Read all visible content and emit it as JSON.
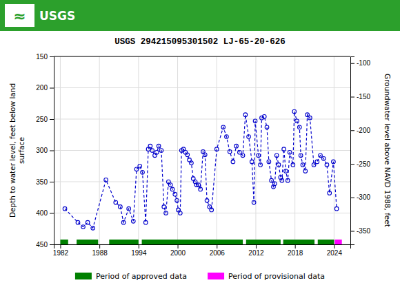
{
  "chart_data": {
    "type": "line",
    "title": "USGS 294215095301502 LJ-65-20-626",
    "annotations": [
      "≈",
      "USGS"
    ],
    "ylabel": "Depth to water level, feet below land\nsurface",
    "y2label": "Groundwater level above NAVD 1988, feet",
    "xlim": [
      1981.0,
      2026.5
    ],
    "xticks": [
      1982,
      1988,
      1994,
      2000,
      2006,
      2012,
      2018,
      2024
    ],
    "ylim": [
      450,
      150
    ],
    "yticks": [
      150,
      200,
      250,
      300,
      350,
      400,
      450
    ],
    "y2lim": [
      -370,
      -90
    ],
    "y2ticks": [
      -100,
      -150,
      -200,
      -250,
      -300,
      -350
    ],
    "grid": true,
    "legend": "bottom",
    "series": [
      {
        "color": "#0000cc",
        "marker": "circle",
        "line_style": "dashed",
        "x": [
          1982.7,
          1984.7,
          1985.5,
          1986.2,
          1987.0,
          1989.0,
          1990.5,
          1991.2,
          1991.7,
          1992.5,
          1993.2,
          1993.7,
          1994.2,
          1994.6,
          1995.1,
          1995.5,
          1995.8,
          1996.1,
          1996.5,
          1996.8,
          1997.1,
          1997.5,
          1997.9,
          1998.2,
          1998.6,
          1998.9,
          1999.2,
          1999.6,
          1999.9,
          2000.1,
          2000.4,
          2000.6,
          2000.9,
          2001.2,
          2001.5,
          2001.8,
          2002.1,
          2002.4,
          2002.7,
          2002.9,
          2003.2,
          2003.5,
          2003.9,
          2004.2,
          2004.5,
          2004.9,
          2005.2,
          2006.0,
          2007.0,
          2007.5,
          2008.0,
          2008.5,
          2009.0,
          2009.5,
          2010.0,
          2010.4,
          2010.9,
          2011.4,
          2011.7,
          2011.9,
          2012.4,
          2012.7,
          2012.9,
          2013.3,
          2013.7,
          2014.0,
          2014.4,
          2014.7,
          2014.9,
          2015.2,
          2015.5,
          2015.8,
          2016.0,
          2016.3,
          2016.6,
          2016.9,
          2017.2,
          2017.7,
          2017.9,
          2018.3,
          2018.7,
          2018.9,
          2019.2,
          2019.6,
          2019.9,
          2020.3,
          2020.9,
          2021.4,
          2021.9,
          2022.4,
          2022.9,
          2023.3,
          2023.9,
          2024.4
        ],
        "values": [
          393,
          415,
          422,
          415,
          424,
          347,
          383,
          390,
          415,
          393,
          413,
          330,
          325,
          335,
          415,
          298,
          293,
          300,
          308,
          303,
          293,
          300,
          390,
          400,
          350,
          355,
          362,
          370,
          380,
          395,
          400,
          300,
          298,
          303,
          307,
          315,
          320,
          345,
          350,
          355,
          355,
          362,
          302,
          307,
          380,
          390,
          395,
          298,
          263,
          278,
          302,
          318,
          293,
          303,
          308,
          243,
          278,
          318,
          383,
          253,
          308,
          323,
          248,
          246,
          263,
          318,
          348,
          358,
          353,
          308,
          323,
          343,
          348,
          298,
          333,
          348,
          303,
          323,
          238,
          253,
          263,
          308,
          323,
          333,
          243,
          248,
          323,
          318,
          308,
          313,
          323,
          368,
          318,
          393
        ]
      }
    ],
    "periods": [
      {
        "name": "Period of approved data",
        "color": "#008000",
        "segments": [
          [
            1982.0,
            1983.2
          ],
          [
            1984.5,
            1987.8
          ],
          [
            1989.5,
            1994.0
          ],
          [
            1994.5,
            2010.0
          ],
          [
            2010.5,
            2015.8
          ],
          [
            2016.2,
            2021.0
          ],
          [
            2021.5,
            2024.0
          ]
        ]
      },
      {
        "name": "Period of provisional data",
        "color": "#ff00ff",
        "segments": [
          [
            2024.1,
            2025.2
          ]
        ]
      }
    ]
  }
}
